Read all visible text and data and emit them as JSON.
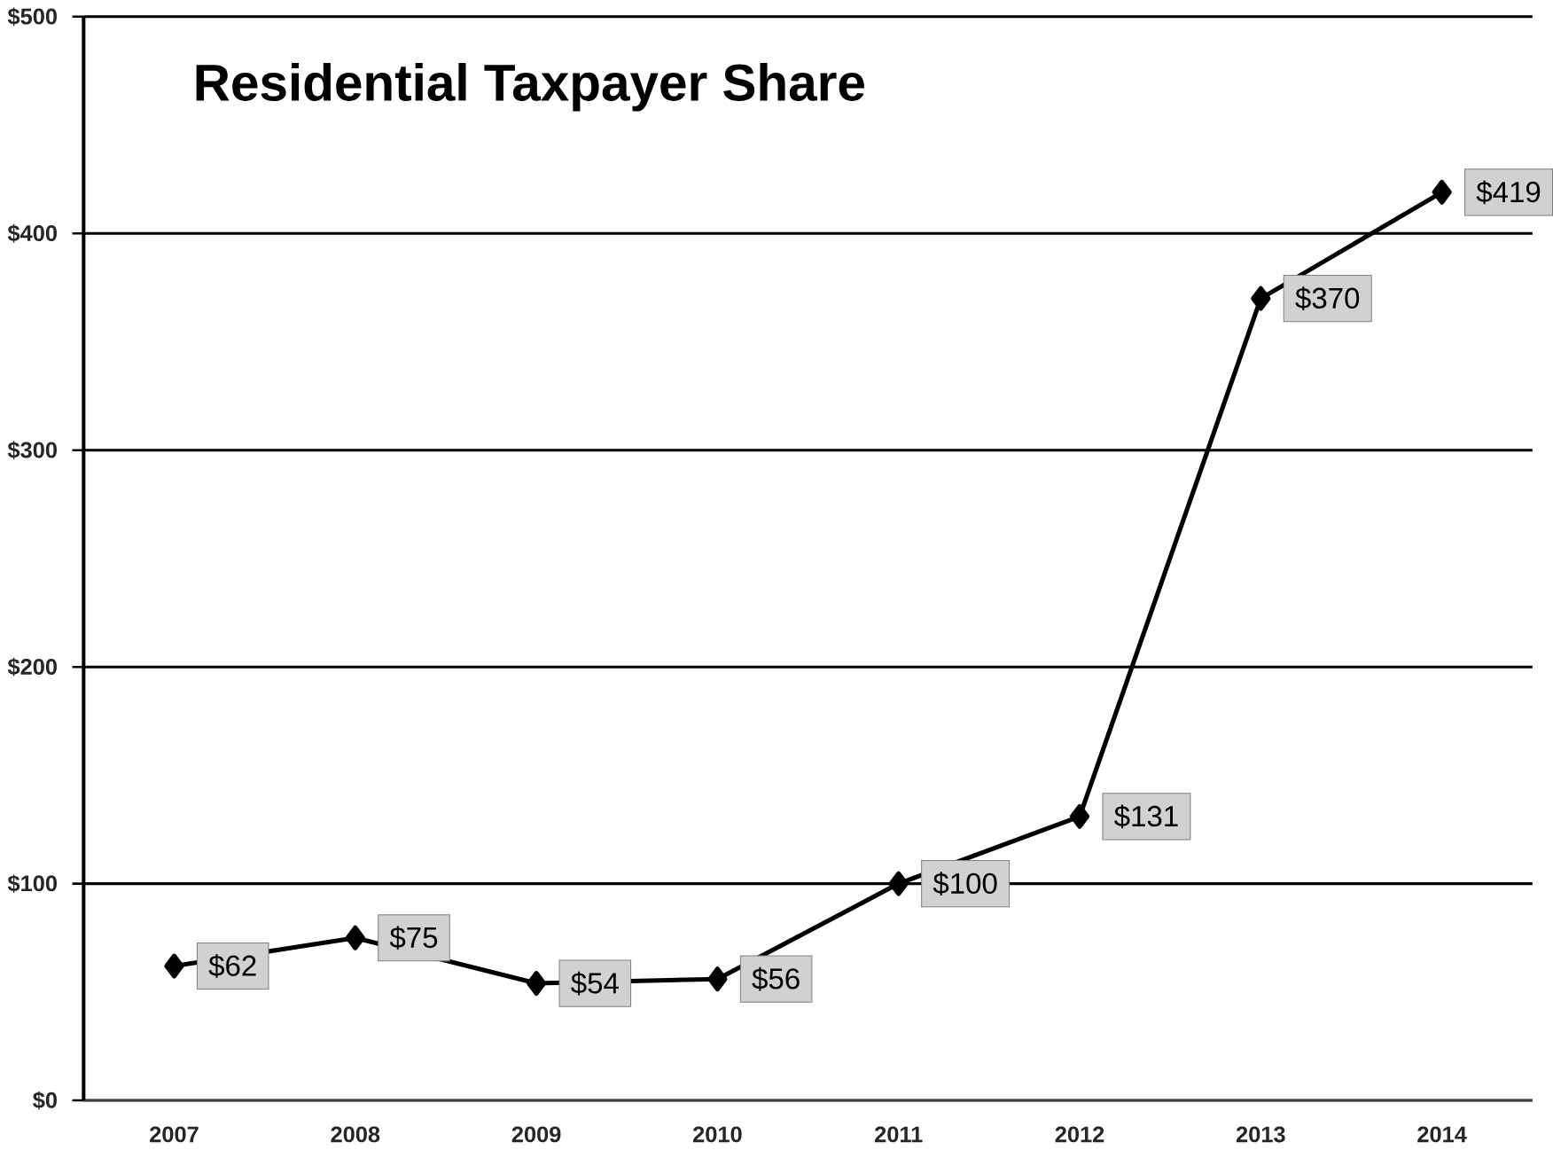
{
  "chart_data": {
    "type": "line",
    "title": "Residential Taxpayer Share",
    "categories": [
      "2007",
      "2008",
      "2009",
      "2010",
      "2011",
      "2012",
      "2013",
      "2014"
    ],
    "values": [
      62,
      75,
      54,
      56,
      100,
      131,
      370,
      419
    ],
    "value_labels": [
      "$62",
      "$75",
      "$54",
      "$56",
      "$100",
      "$131",
      "$370",
      "$419"
    ],
    "color": "#000000",
    "marker": "diamond",
    "line_style": "solid",
    "ylim": [
      0,
      500
    ],
    "yticks": [
      {
        "value": 0,
        "label": "$0"
      },
      {
        "value": 100,
        "label": "$100"
      },
      {
        "value": 200,
        "label": "$200"
      },
      {
        "value": 300,
        "label": "$300"
      },
      {
        "value": 400,
        "label": "$400"
      },
      {
        "value": 500,
        "label": "$500"
      }
    ],
    "grid": "y"
  }
}
